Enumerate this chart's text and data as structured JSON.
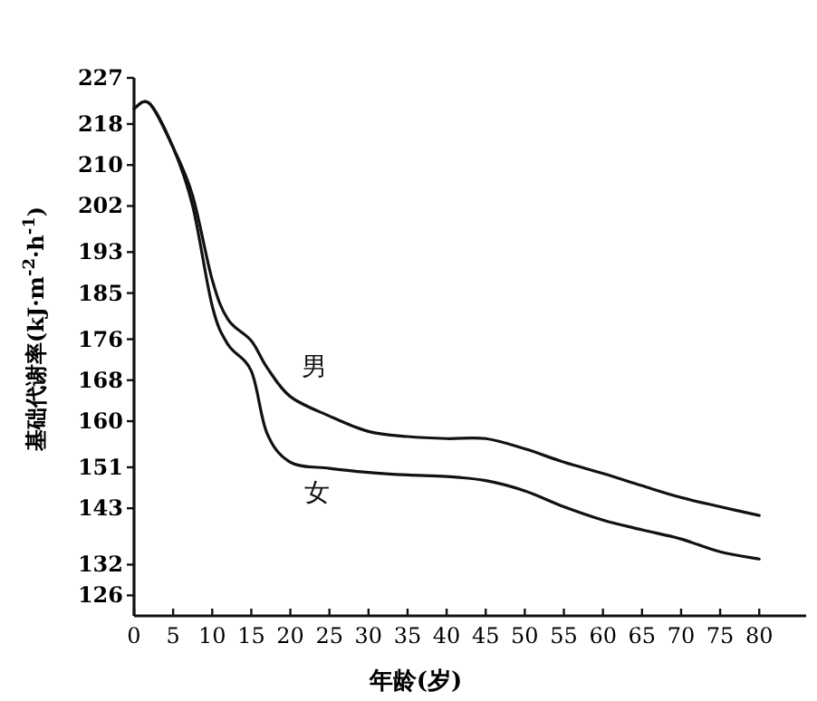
{
  "chart_data": {
    "type": "line",
    "xlabel": "年龄(岁)",
    "ylabel": "基础代谢率(kJ·m$^{-2}$·h$^{-1}$)",
    "x": [
      0,
      2,
      5,
      7.5,
      10,
      12,
      15,
      17,
      20,
      25,
      30,
      35,
      40,
      45,
      50,
      55,
      60,
      65,
      70,
      75,
      80
    ],
    "series": [
      {
        "name": "男",
        "color": "#111111",
        "values": [
          221,
          222,
          213.4,
          204,
          187.6,
          179.9,
          175.7,
          170.5,
          164.8,
          161,
          158,
          157,
          156.6,
          156.6,
          154.6,
          152,
          149.8,
          147.4,
          145.1,
          143.3,
          141.6
        ]
      },
      {
        "name": "女",
        "color": "#111111",
        "values": [
          221,
          222,
          213.4,
          202,
          182.5,
          175,
          169.8,
          157.7,
          152,
          150.8,
          150,
          149.5,
          149.2,
          148.4,
          146.4,
          143.3,
          140.7,
          138.8,
          137,
          134.5,
          133.1
        ]
      }
    ],
    "xlim": [
      0,
      86
    ],
    "ylim": [
      122,
      227
    ],
    "xticks": [
      0,
      5,
      10,
      15,
      20,
      25,
      30,
      35,
      40,
      45,
      50,
      55,
      60,
      65,
      70,
      75,
      80
    ],
    "yticks": [
      126,
      132,
      143,
      151,
      160,
      168,
      176,
      185,
      193,
      202,
      210,
      218,
      227
    ],
    "grid": false,
    "legend": false,
    "line_style": "solid"
  }
}
